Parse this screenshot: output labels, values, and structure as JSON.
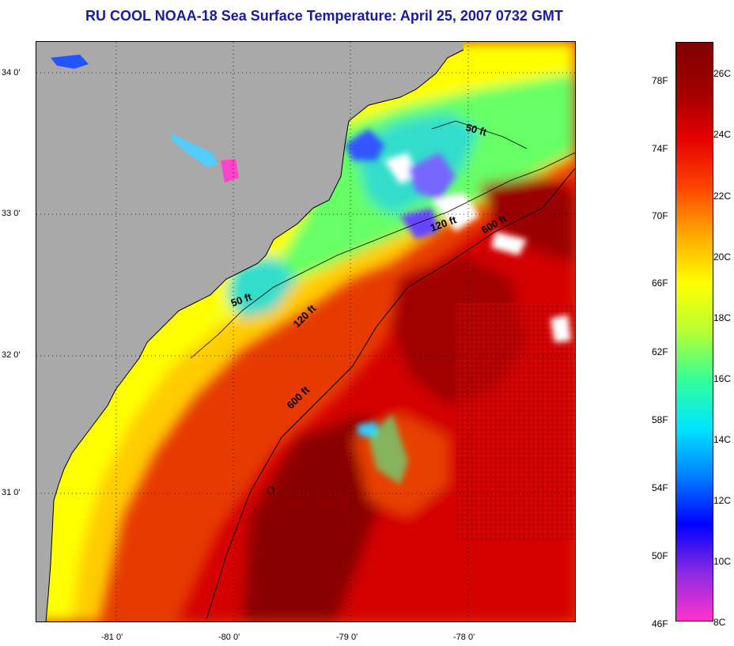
{
  "title": "RU COOL  NOAA-18  Sea Surface Temperature:  April 25, 2007 0732 GMT",
  "map": {
    "lat_labels": [
      "34 0'",
      "33 0'",
      "32 0'",
      "31 0'"
    ],
    "lon_labels": [
      "-81 0'",
      "-80 0'",
      "-79 0'",
      "-78 0'"
    ],
    "lat_range": [
      30.2,
      34.2
    ],
    "lon_range": [
      -81.6,
      -77.0
    ],
    "contours": [
      {
        "label": "50 ft",
        "positions": 2
      },
      {
        "label": "120 ft",
        "positions": 2
      },
      {
        "label": "600 ft",
        "positions": 2
      }
    ],
    "contour_labels": [
      "50 ft",
      "120 ft",
      "600 ft",
      "50 ft",
      "120 ft",
      "600 ft"
    ],
    "land_color": "#a9a9a9"
  },
  "colorbar": {
    "fahrenheit": [
      "78F",
      "74F",
      "70F",
      "66F",
      "62F",
      "58F",
      "54F",
      "50F",
      "46F"
    ],
    "celsius": [
      "26C",
      "24C",
      "22C",
      "20C",
      "18C",
      "16C",
      "14C",
      "12C",
      "10C",
      "8C"
    ],
    "range_c": [
      8,
      27
    ],
    "colors": [
      "#ff33cc",
      "#8a2be2",
      "#0000ff",
      "#0080ff",
      "#00e5ff",
      "#33ff99",
      "#b6ff33",
      "#ffff00",
      "#ffaa00",
      "#ff4400",
      "#e60000",
      "#a00000",
      "#800000"
    ]
  }
}
